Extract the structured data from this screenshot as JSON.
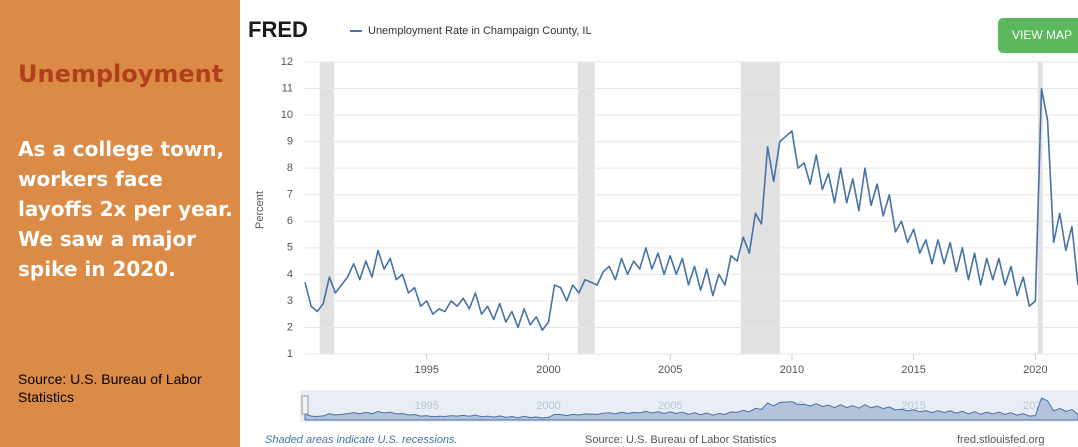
{
  "panel": {
    "title": "Unemployment",
    "paragraphs": [
      "As a college town, workers face layoffs 2x per year.",
      "We saw a major spike in 2020."
    ],
    "source": "Source: U.S. Bureau of Labor Statistics"
  },
  "chart_data": {
    "type": "line",
    "logo": "FRED",
    "button": "VIEW MAP",
    "ylabel": "Percent",
    "footer_note": "Shaded areas indicate U.S. recessions.",
    "footer_source": "Source: U.S. Bureau of Labor Statistics",
    "footer_site": "fred.stlouisfed.org",
    "xlim": [
      1990,
      2021.75
    ],
    "ylim": [
      1,
      12
    ],
    "xticks": [
      1995,
      2000,
      2005,
      2010,
      2015,
      2020
    ],
    "yticks": [
      1,
      2,
      3,
      4,
      5,
      6,
      7,
      8,
      9,
      10,
      11,
      12
    ],
    "grid": true,
    "recessions": [
      [
        1990.6,
        1991.2
      ],
      [
        2001.2,
        2001.9
      ],
      [
        2007.9,
        2009.5
      ],
      [
        2020.1,
        2020.3
      ]
    ],
    "x": [
      1990,
      1990.25,
      1990.5,
      1990.75,
      1991,
      1991.25,
      1991.5,
      1991.75,
      1992,
      1992.25,
      1992.5,
      1992.75,
      1993,
      1993.25,
      1993.5,
      1993.75,
      1994,
      1994.25,
      1994.5,
      1994.75,
      1995,
      1995.25,
      1995.5,
      1995.75,
      1996,
      1996.25,
      1996.5,
      1996.75,
      1997,
      1997.25,
      1997.5,
      1997.75,
      1998,
      1998.25,
      1998.5,
      1998.75,
      1999,
      1999.25,
      1999.5,
      1999.75,
      2000,
      2000.25,
      2000.5,
      2000.75,
      2001,
      2001.25,
      2001.5,
      2001.75,
      2002,
      2002.25,
      2002.5,
      2002.75,
      2003,
      2003.25,
      2003.5,
      2003.75,
      2004,
      2004.25,
      2004.5,
      2004.75,
      2005,
      2005.25,
      2005.5,
      2005.75,
      2006,
      2006.25,
      2006.5,
      2006.75,
      2007,
      2007.25,
      2007.5,
      2007.75,
      2008,
      2008.25,
      2008.5,
      2008.75,
      2009,
      2009.25,
      2009.5,
      2009.75,
      2010,
      2010.25,
      2010.5,
      2010.75,
      2011,
      2011.25,
      2011.5,
      2011.75,
      2012,
      2012.25,
      2012.5,
      2012.75,
      2013,
      2013.25,
      2013.5,
      2013.75,
      2014,
      2014.25,
      2014.5,
      2014.75,
      2015,
      2015.25,
      2015.5,
      2015.75,
      2016,
      2016.25,
      2016.5,
      2016.75,
      2017,
      2017.25,
      2017.5,
      2017.75,
      2018,
      2018.25,
      2018.5,
      2018.75,
      2019,
      2019.25,
      2019.5,
      2019.75,
      2020,
      2020.25,
      2020.5,
      2020.75,
      2021,
      2021.25,
      2021.5,
      2021.75
    ],
    "series": [
      {
        "name": "Unemployment Rate in Champaign County, IL",
        "color": "#4572a7",
        "values": [
          3.7,
          2.8,
          2.6,
          2.9,
          3.9,
          3.3,
          3.6,
          3.9,
          4.4,
          3.8,
          4.5,
          3.9,
          4.9,
          4.2,
          4.6,
          3.8,
          4.0,
          3.3,
          3.5,
          2.8,
          3.0,
          2.5,
          2.7,
          2.6,
          3.0,
          2.8,
          3.1,
          2.7,
          3.3,
          2.5,
          2.8,
          2.3,
          2.9,
          2.2,
          2.6,
          2.0,
          2.7,
          2.1,
          2.4,
          1.9,
          2.2,
          3.6,
          3.5,
          3.0,
          3.6,
          3.3,
          3.8,
          3.7,
          3.6,
          4.1,
          4.3,
          3.8,
          4.6,
          4.0,
          4.5,
          4.2,
          5.0,
          4.2,
          4.8,
          4.0,
          4.7,
          4.0,
          4.6,
          3.6,
          4.3,
          3.4,
          4.2,
          3.2,
          4.0,
          3.6,
          4.7,
          4.5,
          5.4,
          4.8,
          6.3,
          5.9,
          8.8,
          7.5,
          9.0,
          9.2,
          9.4,
          8.0,
          8.2,
          7.4,
          8.5,
          7.2,
          7.8,
          6.7,
          8.0,
          6.7,
          7.6,
          6.4,
          8.0,
          6.6,
          7.4,
          6.2,
          7.0,
          5.6,
          6.0,
          5.2,
          5.7,
          4.8,
          5.3,
          4.4,
          5.3,
          4.4,
          5.2,
          4.1,
          5.0,
          3.8,
          4.8,
          3.6,
          4.6,
          3.8,
          4.6,
          3.6,
          4.3,
          3.2,
          3.9,
          2.8,
          3.0,
          11.0,
          9.8,
          5.2,
          6.3,
          4.9,
          5.8,
          3.6
        ]
      }
    ]
  }
}
